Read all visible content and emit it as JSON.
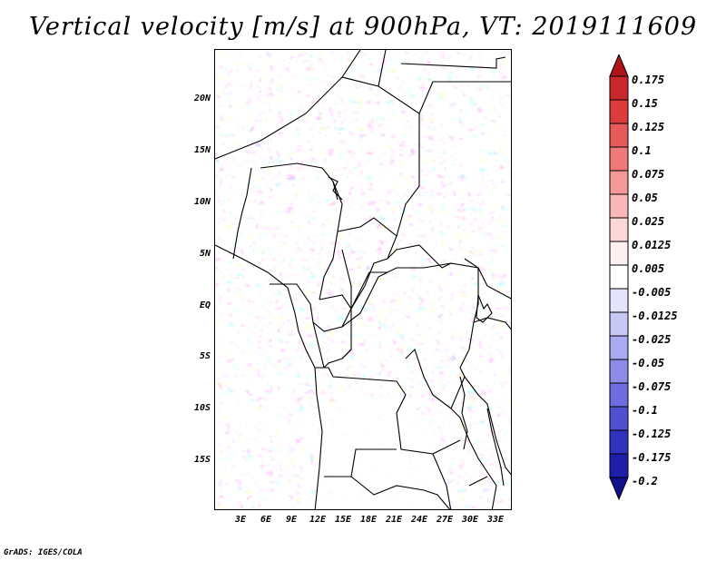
{
  "title": "Vertical velocity [m/s] at 900hPa, VT: 2019111609",
  "footer": "GrADS: IGES/COLA",
  "map": {
    "region": "Central Africa",
    "variable": "Vertical velocity",
    "units": "m/s",
    "level": "900hPa",
    "valid_time": "2019111609",
    "lat_labels": [
      "20N",
      "15N",
      "10N",
      "5N",
      "EQ",
      "5S",
      "10S",
      "15S"
    ],
    "lon_labels": [
      "3E",
      "6E",
      "9E",
      "12E",
      "15E",
      "18E",
      "21E",
      "24E",
      "27E",
      "30E",
      "33E"
    ]
  },
  "colorbar": {
    "labels": [
      "0.175",
      "0.15",
      "0.125",
      "0.1",
      "0.075",
      "0.05",
      "0.025",
      "0.0125",
      "0.005",
      "-0.005",
      "-0.0125",
      "-0.025",
      "-0.05",
      "-0.075",
      "-0.1",
      "-0.125",
      "-0.175",
      "-0.2"
    ],
    "colors": [
      "#b01418",
      "#c8282c",
      "#dc3c3c",
      "#e85a5a",
      "#f07a7a",
      "#f59898",
      "#f9b8b8",
      "#fcd8d8",
      "#fdf0f0",
      "#ffffff",
      "#e4e4fc",
      "#c8c8f6",
      "#aaaaf0",
      "#8c8ce8",
      "#6e6ee0",
      "#5050d2",
      "#3232c0",
      "#1e1eaa",
      "#10108c"
    ]
  }
}
